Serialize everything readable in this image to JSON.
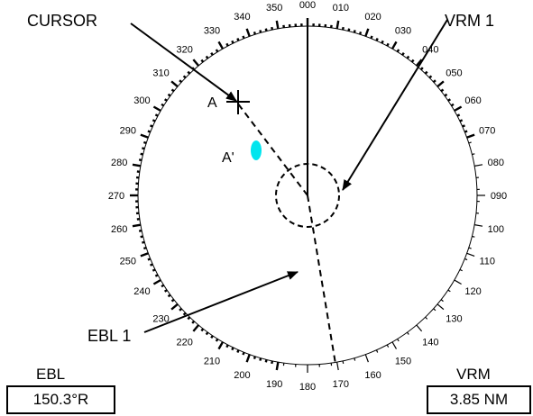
{
  "colors": {
    "ink": "#000000",
    "target": "#00e5ee",
    "background": "#ffffff"
  },
  "bearing_scale": {
    "labels": [
      "000",
      "010",
      "020",
      "030",
      "040",
      "050",
      "060",
      "070",
      "080",
      "090",
      "100",
      "110",
      "120",
      "130",
      "140",
      "150",
      "160",
      "170",
      "180",
      "190",
      "200",
      "210",
      "220",
      "230",
      "240",
      "250",
      "260",
      "270",
      "280",
      "290",
      "300",
      "310",
      "320",
      "330",
      "340",
      "350"
    ]
  },
  "callouts": {
    "cursor": "CURSOR",
    "vrm": "VRM 1",
    "ebl": "EBL 1"
  },
  "points": {
    "a": "A",
    "a_prime": "A'"
  },
  "readouts": {
    "ebl": {
      "title": "EBL",
      "value": "150.3°R"
    },
    "vrm": {
      "title": "VRM",
      "value": "3.85 NM"
    }
  }
}
